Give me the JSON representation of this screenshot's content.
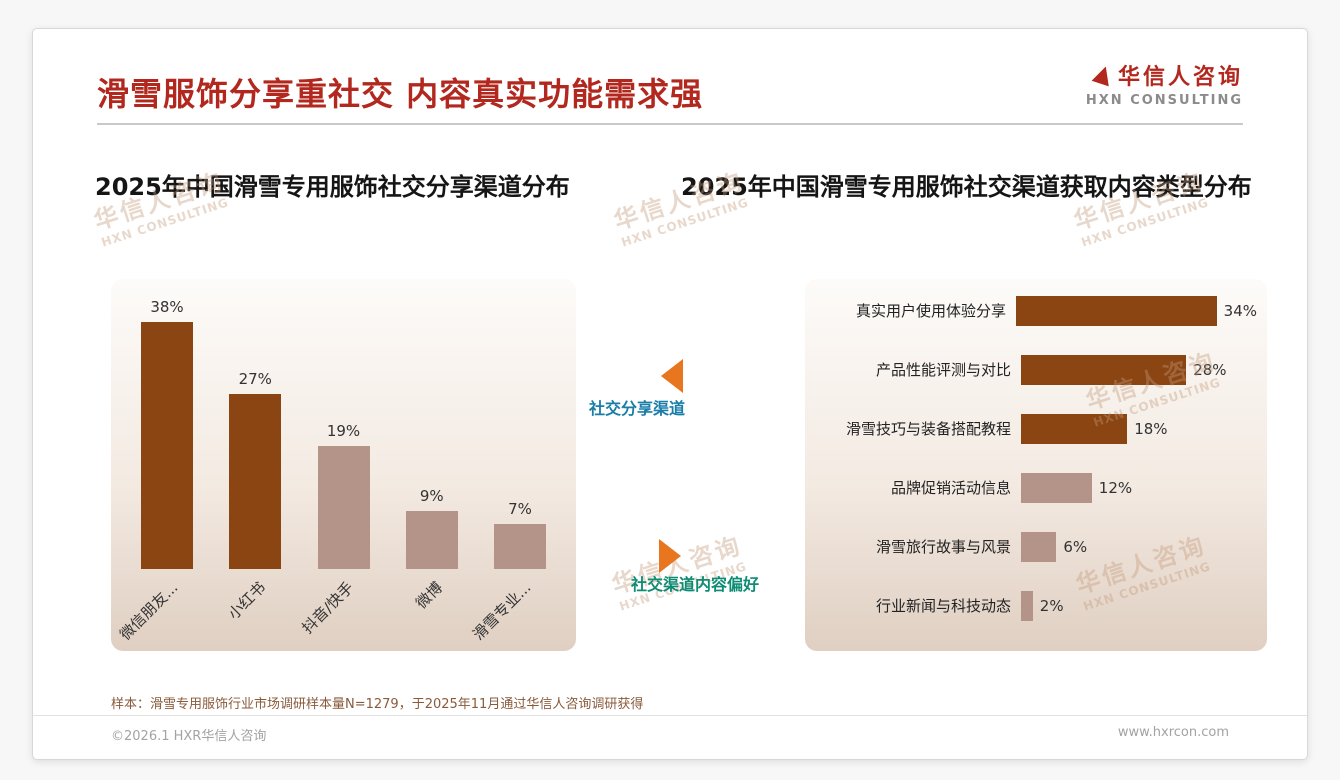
{
  "header": {
    "title": "滑雪服饰分享重社交 内容真实功能需求强",
    "brand_color": "#B2281E",
    "logo_cn": "华信人咨询",
    "logo_en": "HXN CONSULTING"
  },
  "chart_data": [
    {
      "type": "bar",
      "orientation": "vertical",
      "title": "2025年中国滑雪专用服饰社交分享渠道分布",
      "categories": [
        "微信朋友...",
        "小红书",
        "抖音/快手",
        "微博",
        "滑雪专业..."
      ],
      "values": [
        38,
        27,
        19,
        9,
        7
      ],
      "unit": "%",
      "ylim": [
        0,
        40
      ],
      "grid": false,
      "legend": "none",
      "bar_colors": [
        "#8B4513",
        "#8B4513",
        "#B49389",
        "#B49389",
        "#B49389"
      ]
    },
    {
      "type": "bar",
      "orientation": "horizontal",
      "title": "2025年中国滑雪专用服饰社交渠道获取内容类型分布",
      "categories": [
        "真实用户使用体验分享",
        "产品性能评测与对比",
        "滑雪技巧与装备搭配教程",
        "品牌促销活动信息",
        "滑雪旅行故事与风景",
        "行业新闻与科技动态"
      ],
      "values": [
        34,
        28,
        18,
        12,
        6,
        2
      ],
      "unit": "%",
      "xlim": [
        0,
        36
      ],
      "grid": false,
      "legend": "none",
      "bar_colors": [
        "#8B4513",
        "#8B4513",
        "#8B4513",
        "#B49389",
        "#B49389",
        "#B49389"
      ]
    }
  ],
  "annotations": {
    "share_channel": {
      "label": "社交分享渠道",
      "color": "#1A7DA8"
    },
    "content_preference": {
      "label": "社交渠道内容偏好",
      "color": "#0E8C74"
    },
    "arrow_color": "#E8761E"
  },
  "watermark": {
    "cn": "华信人咨询",
    "en": "HXN CONSULTING"
  },
  "footnote": "样本：滑雪专用服饰行业市场调研样本量N=1279，于2025年11月通过华信人咨询调研获得",
  "footer": {
    "copyright": "©2026.1 HXR华信人咨询",
    "website": "www.hxrcon.com"
  }
}
